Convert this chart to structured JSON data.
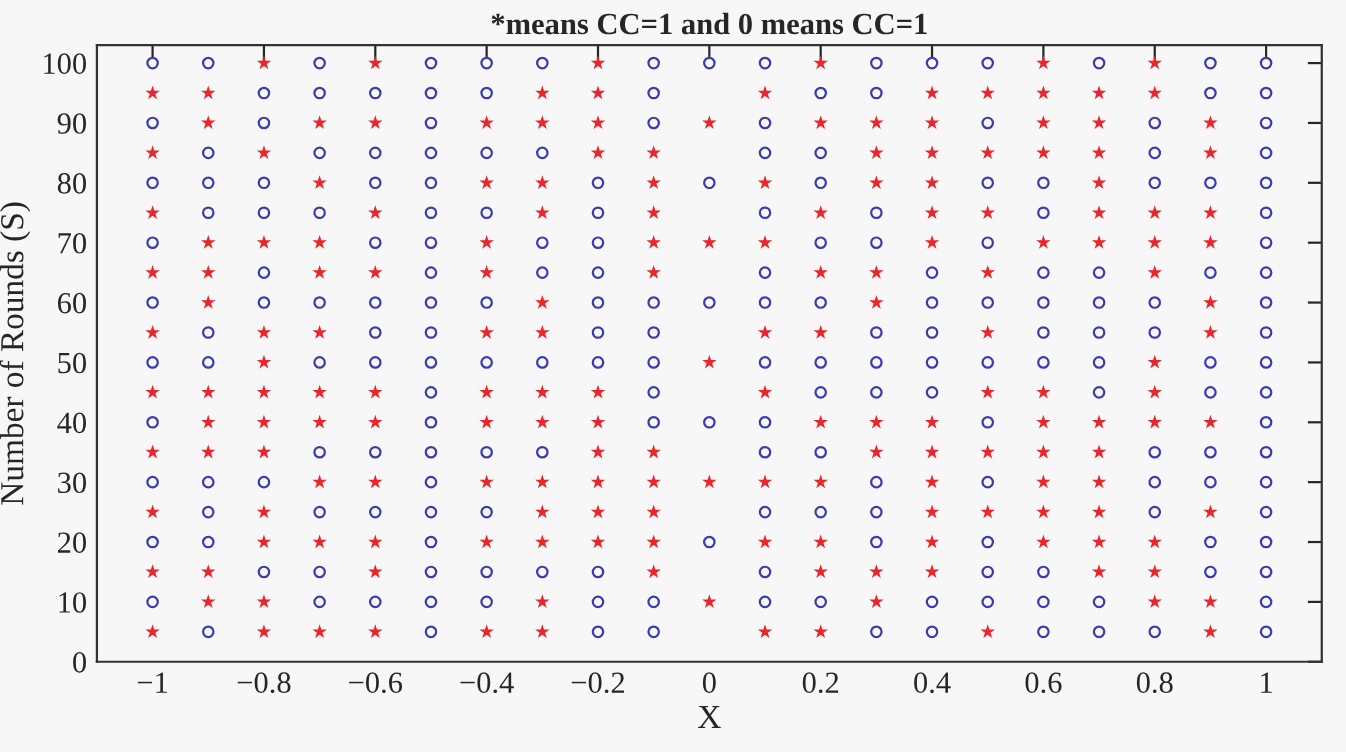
{
  "chart_data": {
    "type": "scatter",
    "title": "*means CC=1 and 0 means CC=1",
    "xlabel": "X",
    "ylabel": "Number of Rounds (S)",
    "xlim": [
      -1.1,
      1.1
    ],
    "ylim": [
      0,
      103
    ],
    "xticks": [
      {
        "value": -1,
        "label": "−1"
      },
      {
        "value": -0.8,
        "label": "−0.8"
      },
      {
        "value": -0.6,
        "label": "−0.6"
      },
      {
        "value": -0.4,
        "label": "−0.4"
      },
      {
        "value": -0.2,
        "label": "−0.2"
      },
      0,
      0.2,
      0.4,
      0.6,
      0.8,
      1
    ],
    "yticks": [
      0,
      10,
      20,
      30,
      40,
      50,
      60,
      70,
      80,
      90,
      100
    ],
    "grid": false,
    "legend": false,
    "series": [
      {
        "color": "#e8262b",
        "marker": "star",
        "x": [
          -1,
          -1,
          -1,
          -1,
          -1,
          -1,
          -1,
          -1,
          -1,
          -1,
          -0.9,
          -0.9,
          -0.9,
          -0.9,
          -0.9,
          -0.9,
          -0.9,
          -0.9,
          -0.9,
          -0.9,
          -0.8,
          -0.8,
          -0.8,
          -0.8,
          -0.8,
          -0.8,
          -0.8,
          -0.8,
          -0.8,
          -0.8,
          -0.8,
          -0.8,
          -0.7,
          -0.7,
          -0.7,
          -0.7,
          -0.7,
          -0.7,
          -0.7,
          -0.7,
          -0.7,
          -0.7,
          -0.6,
          -0.6,
          -0.6,
          -0.6,
          -0.6,
          -0.6,
          -0.6,
          -0.6,
          -0.6,
          -0.6,
          -0.4,
          -0.4,
          -0.4,
          -0.4,
          -0.4,
          -0.4,
          -0.4,
          -0.4,
          -0.4,
          -0.4,
          -0.3,
          -0.3,
          -0.3,
          -0.3,
          -0.3,
          -0.3,
          -0.3,
          -0.3,
          -0.3,
          -0.3,
          -0.3,
          -0.3,
          -0.3,
          -0.2,
          -0.2,
          -0.2,
          -0.2,
          -0.2,
          -0.2,
          -0.2,
          -0.2,
          -0.2,
          -0.2,
          -0.1,
          -0.1,
          -0.1,
          -0.1,
          -0.1,
          -0.1,
          -0.1,
          -0.1,
          -0.1,
          -0.1,
          0,
          0,
          0,
          0,
          0,
          0.1,
          0.1,
          0.1,
          0.1,
          0.1,
          0.1,
          0.1,
          0.1,
          0.2,
          0.2,
          0.2,
          0.2,
          0.2,
          0.2,
          0.2,
          0.2,
          0.2,
          0.2,
          0.3,
          0.3,
          0.3,
          0.3,
          0.3,
          0.3,
          0.3,
          0.3,
          0.3,
          0.4,
          0.4,
          0.4,
          0.4,
          0.4,
          0.4,
          0.4,
          0.4,
          0.4,
          0.4,
          0.4,
          0.4,
          0.5,
          0.5,
          0.5,
          0.5,
          0.5,
          0.5,
          0.5,
          0.5,
          0.5,
          0.6,
          0.6,
          0.6,
          0.6,
          0.6,
          0.6,
          0.6,
          0.6,
          0.6,
          0.6,
          0.6,
          0.7,
          0.7,
          0.7,
          0.7,
          0.7,
          0.7,
          0.7,
          0.7,
          0.7,
          0.7,
          0.7,
          0.7,
          0.8,
          0.8,
          0.8,
          0.8,
          0.8,
          0.8,
          0.8,
          0.8,
          0.8,
          0.8,
          0.8,
          0.9,
          0.9,
          0.9,
          0.9,
          0.9,
          0.9,
          0.9,
          0.9,
          0.9,
          0.9
        ],
        "values": [
          95,
          85,
          75,
          65,
          55,
          45,
          35,
          25,
          15,
          5,
          95,
          90,
          70,
          65,
          60,
          45,
          40,
          35,
          15,
          10,
          100,
          85,
          70,
          55,
          50,
          45,
          40,
          35,
          25,
          20,
          10,
          5,
          90,
          80,
          70,
          65,
          55,
          45,
          40,
          30,
          20,
          5,
          100,
          90,
          75,
          65,
          45,
          40,
          30,
          20,
          15,
          5,
          90,
          80,
          70,
          65,
          55,
          45,
          40,
          30,
          20,
          5,
          95,
          90,
          80,
          75,
          60,
          55,
          45,
          40,
          30,
          25,
          20,
          10,
          5,
          100,
          95,
          90,
          85,
          45,
          40,
          35,
          30,
          25,
          20,
          85,
          80,
          75,
          70,
          65,
          35,
          30,
          25,
          20,
          15,
          90,
          70,
          50,
          30,
          10,
          95,
          80,
          70,
          55,
          45,
          30,
          20,
          5,
          100,
          90,
          75,
          65,
          55,
          40,
          30,
          20,
          15,
          5,
          90,
          85,
          80,
          65,
          60,
          40,
          35,
          15,
          10,
          95,
          90,
          85,
          80,
          75,
          70,
          40,
          35,
          30,
          25,
          20,
          15,
          95,
          85,
          75,
          65,
          55,
          45,
          35,
          25,
          5,
          100,
          95,
          90,
          85,
          70,
          45,
          40,
          35,
          30,
          25,
          20,
          95,
          90,
          85,
          80,
          75,
          70,
          40,
          35,
          30,
          25,
          20,
          15,
          100,
          95,
          75,
          70,
          65,
          50,
          45,
          40,
          20,
          15,
          10,
          90,
          85,
          75,
          70,
          60,
          55,
          40,
          25,
          10,
          5
        ]
      },
      {
        "color": "#3b3bb0",
        "marker": "circle",
        "x": [
          -1,
          -1,
          -1,
          -1,
          -1,
          -1,
          -1,
          -1,
          -1,
          -1,
          -0.9,
          -0.9,
          -0.9,
          -0.9,
          -0.9,
          -0.9,
          -0.9,
          -0.9,
          -0.9,
          -0.9,
          -0.8,
          -0.8,
          -0.8,
          -0.8,
          -0.8,
          -0.8,
          -0.8,
          -0.8,
          -0.7,
          -0.7,
          -0.7,
          -0.7,
          -0.7,
          -0.7,
          -0.7,
          -0.7,
          -0.7,
          -0.7,
          -0.6,
          -0.6,
          -0.6,
          -0.6,
          -0.6,
          -0.6,
          -0.6,
          -0.6,
          -0.6,
          -0.6,
          -0.5,
          -0.5,
          -0.5,
          -0.5,
          -0.5,
          -0.5,
          -0.5,
          -0.5,
          -0.5,
          -0.5,
          -0.5,
          -0.5,
          -0.5,
          -0.5,
          -0.5,
          -0.5,
          -0.5,
          -0.5,
          -0.5,
          -0.5,
          -0.4,
          -0.4,
          -0.4,
          -0.4,
          -0.4,
          -0.4,
          -0.4,
          -0.4,
          -0.4,
          -0.4,
          -0.3,
          -0.3,
          -0.3,
          -0.3,
          -0.3,
          -0.3,
          -0.3,
          -0.2,
          -0.2,
          -0.2,
          -0.2,
          -0.2,
          -0.2,
          -0.2,
          -0.2,
          -0.2,
          -0.2,
          -0.1,
          -0.1,
          -0.1,
          -0.1,
          -0.1,
          -0.1,
          -0.1,
          -0.1,
          -0.1,
          -0.1,
          0,
          0,
          0,
          0,
          0,
          0.1,
          0.1,
          0.1,
          0.1,
          0.1,
          0.1,
          0.1,
          0.1,
          0.1,
          0.1,
          0.1,
          0.1,
          0.2,
          0.2,
          0.2,
          0.2,
          0.2,
          0.2,
          0.2,
          0.2,
          0.2,
          0.2,
          0.3,
          0.3,
          0.3,
          0.3,
          0.3,
          0.3,
          0.3,
          0.3,
          0.3,
          0.3,
          0.3,
          0.4,
          0.4,
          0.4,
          0.4,
          0.4,
          0.4,
          0.4,
          0.4,
          0.5,
          0.5,
          0.5,
          0.5,
          0.5,
          0.5,
          0.5,
          0.5,
          0.5,
          0.5,
          0.5,
          0.6,
          0.6,
          0.6,
          0.6,
          0.6,
          0.6,
          0.6,
          0.6,
          0.6,
          0.7,
          0.7,
          0.7,
          0.7,
          0.7,
          0.7,
          0.7,
          0.7,
          0.8,
          0.8,
          0.8,
          0.8,
          0.8,
          0.8,
          0.8,
          0.8,
          0.8,
          0.9,
          0.9,
          0.9,
          0.9,
          0.9,
          0.9,
          0.9,
          0.9,
          0.9,
          0.9,
          1,
          1,
          1,
          1,
          1,
          1,
          1,
          1,
          1,
          1,
          1,
          1,
          1,
          1,
          1,
          1,
          1,
          1,
          1,
          1
        ],
        "values": [
          100,
          90,
          80,
          70,
          60,
          50,
          40,
          30,
          20,
          10,
          100,
          85,
          80,
          75,
          55,
          50,
          30,
          25,
          20,
          5,
          95,
          90,
          80,
          75,
          65,
          60,
          30,
          15,
          100,
          95,
          85,
          75,
          60,
          50,
          35,
          25,
          15,
          10,
          95,
          85,
          80,
          70,
          60,
          55,
          50,
          35,
          25,
          10,
          100,
          95,
          90,
          85,
          80,
          75,
          70,
          65,
          60,
          55,
          50,
          45,
          40,
          35,
          30,
          25,
          20,
          15,
          10,
          5,
          100,
          95,
          85,
          75,
          60,
          50,
          35,
          25,
          15,
          10,
          100,
          85,
          70,
          65,
          50,
          35,
          15,
          80,
          75,
          70,
          65,
          60,
          55,
          50,
          15,
          10,
          5,
          100,
          95,
          90,
          60,
          55,
          50,
          45,
          40,
          10,
          5,
          100,
          80,
          60,
          40,
          20,
          100,
          90,
          85,
          75,
          65,
          60,
          50,
          40,
          35,
          25,
          15,
          10,
          95,
          85,
          80,
          70,
          60,
          50,
          45,
          35,
          25,
          10,
          100,
          95,
          75,
          70,
          55,
          50,
          45,
          30,
          25,
          20,
          5,
          100,
          65,
          60,
          55,
          50,
          45,
          10,
          5,
          100,
          90,
          80,
          70,
          60,
          50,
          40,
          30,
          20,
          15,
          10,
          80,
          75,
          65,
          60,
          55,
          50,
          15,
          10,
          5,
          100,
          65,
          60,
          55,
          50,
          45,
          10,
          5,
          90,
          85,
          80,
          60,
          55,
          35,
          30,
          25,
          5,
          100,
          95,
          80,
          65,
          50,
          45,
          35,
          30,
          20,
          15,
          100,
          95,
          90,
          85,
          80,
          75,
          70,
          65,
          60,
          55,
          50,
          45,
          40,
          35,
          30,
          25,
          20,
          15,
          10,
          5
        ]
      }
    ]
  }
}
